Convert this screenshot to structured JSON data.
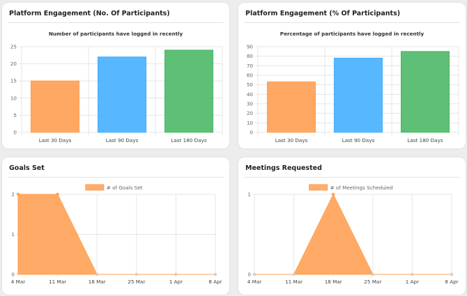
{
  "cards": [
    {
      "title": "Platform Engagement (No. Of Participants)"
    },
    {
      "title": "Platform Engagement (% Of Participants)"
    },
    {
      "title": "Goals Set"
    },
    {
      "title": "Meetings Requested"
    }
  ],
  "colors": {
    "orange": "#ff9f52",
    "blue": "#45b0ff",
    "green": "#4cb867",
    "grid": "#e6e6e6",
    "axis_text": "#666666"
  },
  "chart_data": [
    {
      "type": "bar",
      "title": "Number of participants have logged in recently",
      "categories": [
        "Last 30 Days",
        "Last 90 Days",
        "Last 180 Days"
      ],
      "values": [
        15,
        22,
        24
      ],
      "colors": [
        "#ff9f52",
        "#45b0ff",
        "#4cb867"
      ],
      "ylim": [
        0,
        25
      ],
      "yticks": [
        0,
        5,
        10,
        15,
        20,
        25
      ],
      "grid": true
    },
    {
      "type": "bar",
      "title": "Percentage of participants have logged in recently",
      "categories": [
        "Last 30 Days",
        "Last 90 Days",
        "Last 180 Days"
      ],
      "values": [
        53,
        78,
        85
      ],
      "colors": [
        "#ff9f52",
        "#45b0ff",
        "#4cb867"
      ],
      "ylim": [
        0,
        90
      ],
      "yticks": [
        0,
        10,
        20,
        30,
        40,
        50,
        60,
        70,
        80,
        90
      ],
      "grid": true
    },
    {
      "type": "area",
      "legend": "# of Goals Set",
      "categories": [
        "4 Mar",
        "11 Mar",
        "18 Mar",
        "25 Mar",
        "1 Apr",
        "8 Apr"
      ],
      "values": [
        2,
        2,
        0,
        0,
        0,
        0
      ],
      "color": "#ff9f52",
      "ylim": [
        0,
        2
      ],
      "yticks": [
        0,
        1,
        2
      ],
      "grid": true
    },
    {
      "type": "area",
      "legend": "# of Meetings Scheduled",
      "categories": [
        "4 Mar",
        "11 Mar",
        "18 Mar",
        "25 Mar",
        "1 Apr",
        "8 Apr"
      ],
      "values": [
        0,
        0,
        1,
        0,
        0,
        0
      ],
      "color": "#ff9f52",
      "ylim": [
        0,
        1
      ],
      "yticks": [
        0,
        1
      ],
      "grid": true
    }
  ]
}
